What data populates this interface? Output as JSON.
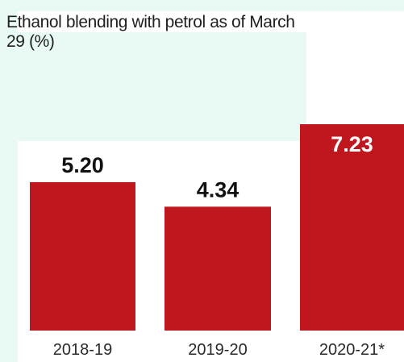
{
  "chart_data": {
    "type": "bar",
    "title": "Ethanol blending with petrol as of March 29 (%)",
    "categories": [
      "2018-19",
      "2019-20",
      "2020-21*"
    ],
    "values": [
      5.2,
      4.34,
      7.23
    ],
    "value_labels": [
      "5.20",
      "4.34",
      "7.23"
    ],
    "xlabel": "",
    "ylabel": "",
    "grid": false,
    "legend": "none",
    "colors": {
      "bar": "#c0161e",
      "label_dark": "#111111",
      "label_light": "#ffffff",
      "background": "#ffffff",
      "tint": "#e8faf3"
    }
  }
}
